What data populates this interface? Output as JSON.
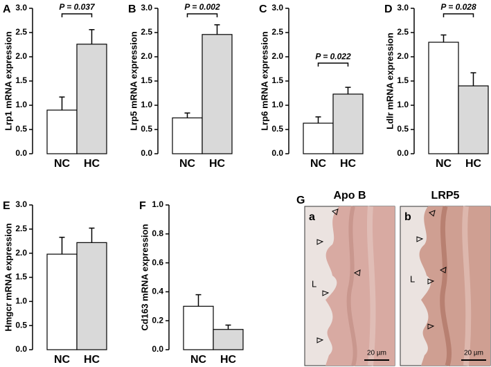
{
  "chart_data": [
    {
      "type": "bar",
      "panel": "A",
      "ylabel": "Lrp1 mRNA expression",
      "categories": [
        "NC",
        "HC"
      ],
      "values": [
        0.9,
        2.26
      ],
      "errors": [
        0.27,
        0.3
      ],
      "colors": [
        "#ffffff",
        "#d9d9d9"
      ],
      "annotation": "P = 0.037",
      "ylim": [
        0,
        3
      ],
      "yticks": [
        {
          "value": 0,
          "label": "0.0"
        },
        0.5,
        {
          "value": 1,
          "label": "1.0"
        },
        1.5,
        {
          "value": 2,
          "label": "2.0"
        },
        2.5,
        {
          "value": 3,
          "label": "3.0"
        }
      ]
    },
    {
      "type": "bar",
      "panel": "B",
      "ylabel": "Lrp5 mRNA expression",
      "categories": [
        "NC",
        "HC"
      ],
      "values": [
        0.74,
        2.46
      ],
      "errors": [
        0.1,
        0.2
      ],
      "colors": [
        "#ffffff",
        "#d9d9d9"
      ],
      "annotation": "P = 0.002",
      "ylim": [
        0,
        3
      ],
      "yticks": [
        {
          "value": 0,
          "label": "0.0"
        },
        0.5,
        {
          "value": 1,
          "label": "1.0"
        },
        1.5,
        {
          "value": 2,
          "label": "2.0"
        },
        2.5,
        {
          "value": 3,
          "label": "3.0"
        }
      ]
    },
    {
      "type": "bar",
      "panel": "C",
      "ylabel": "Lrp6 mRNA expression",
      "categories": [
        "NC",
        "HC"
      ],
      "values": [
        0.63,
        1.23
      ],
      "errors": [
        0.13,
        0.14
      ],
      "colors": [
        "#ffffff",
        "#d9d9d9"
      ],
      "annotation": "P = 0.022",
      "ylim": [
        0,
        3
      ],
      "yticks": [
        {
          "value": 0,
          "label": "0.0"
        },
        0.5,
        {
          "value": 1,
          "label": "1.0"
        },
        1.5,
        {
          "value": 2,
          "label": "2.0"
        },
        2.5,
        {
          "value": 3,
          "label": "3.0"
        }
      ]
    },
    {
      "type": "bar",
      "panel": "D",
      "ylabel": "Ldlr mRNA expression",
      "categories": [
        "NC",
        "HC"
      ],
      "values": [
        2.3,
        1.4
      ],
      "errors": [
        0.15,
        0.27
      ],
      "colors": [
        "#ffffff",
        "#d9d9d9"
      ],
      "annotation": "P = 0.028",
      "ylim": [
        0,
        3
      ],
      "yticks": [
        {
          "value": 0,
          "label": "0.0"
        },
        0.5,
        {
          "value": 1,
          "label": "1.0"
        },
        1.5,
        {
          "value": 2,
          "label": "2.0"
        },
        2.5,
        {
          "value": 3,
          "label": "3.0"
        }
      ]
    },
    {
      "type": "bar",
      "panel": "E",
      "ylabel": "Hmgcr mRNA expression",
      "categories": [
        "NC",
        "HC"
      ],
      "values": [
        1.98,
        2.22
      ],
      "errors": [
        0.35,
        0.3
      ],
      "colors": [
        "#ffffff",
        "#d9d9d9"
      ],
      "ylim": [
        0,
        3
      ],
      "yticks": [
        {
          "value": 0,
          "label": "0.0"
        },
        0.5,
        {
          "value": 1,
          "label": "1.0"
        },
        1.5,
        {
          "value": 2,
          "label": "2.0"
        },
        2.5,
        {
          "value": 3,
          "label": "3.0"
        }
      ]
    },
    {
      "type": "bar",
      "panel": "F",
      "ylabel": "Cd163  mRNA expression",
      "categories": [
        "NC",
        "HC"
      ],
      "values": [
        0.3,
        0.14
      ],
      "errors": [
        0.08,
        0.03
      ],
      "colors": [
        "#ffffff",
        "#d9d9d9"
      ],
      "ylim": [
        0,
        1
      ],
      "yticks": [
        {
          "value": 0,
          "label": "0.0"
        },
        0.2,
        0.4,
        0.6,
        0.8,
        {
          "value": 1,
          "label": "1.0"
        }
      ]
    }
  ],
  "figure_g": {
    "panel": "G",
    "images": [
      {
        "title": "Apo B",
        "label": "a",
        "lumen": "L",
        "scale": "20 µm"
      },
      {
        "title": "LRP5",
        "label": "b",
        "lumen": "L",
        "scale": "20 µm"
      }
    ]
  }
}
